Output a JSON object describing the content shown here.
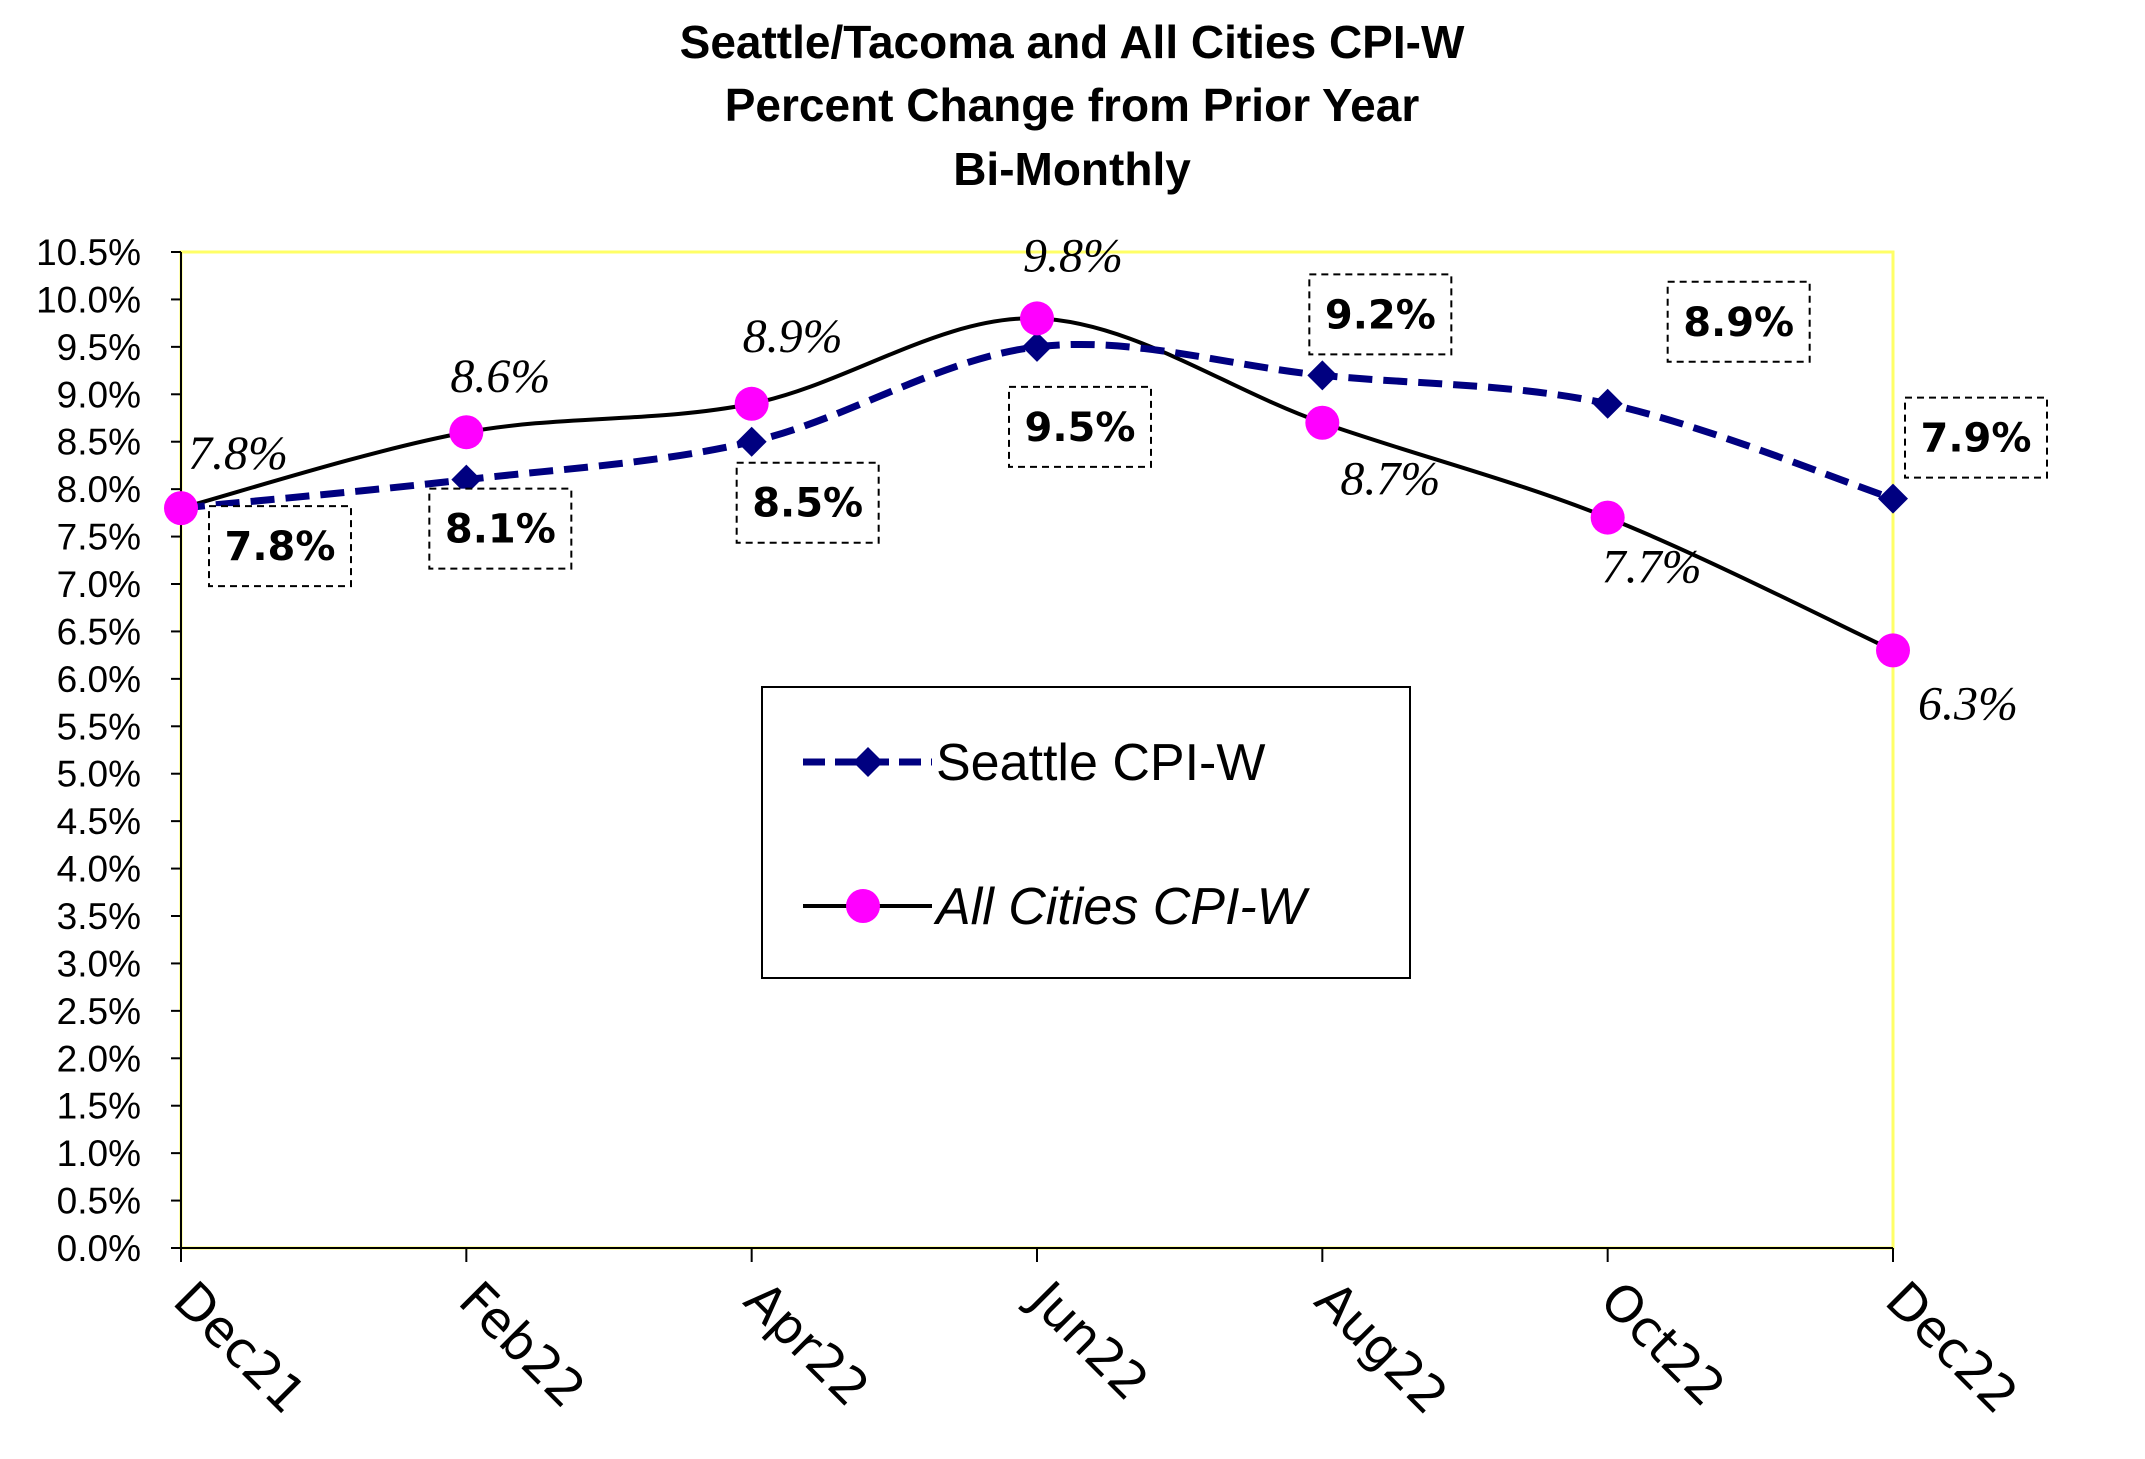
{
  "chart_data": {
    "type": "line",
    "title": [
      "Seattle/Tacoma and All Cities CPI-W",
      "Percent Change from Prior Year",
      "Bi-Monthly"
    ],
    "categories": [
      "Dec21",
      "Feb22",
      "Apr22",
      "Jun22",
      "Aug22",
      "Oct22",
      "Dec22"
    ],
    "ylim": [
      0,
      10.5
    ],
    "ytick_step": 0.5,
    "ytick_labels": [
      "0.0%",
      "0.5%",
      "1.0%",
      "1.5%",
      "2.0%",
      "2.5%",
      "3.0%",
      "3.5%",
      "4.0%",
      "4.5%",
      "5.0%",
      "5.5%",
      "6.0%",
      "6.5%",
      "7.0%",
      "7.5%",
      "8.0%",
      "8.5%",
      "9.0%",
      "9.5%",
      "10.0%",
      "10.5%"
    ],
    "grid": false,
    "legend_position": "center",
    "series": [
      {
        "name": "Seattle CPI-W",
        "values": [
          7.8,
          8.1,
          8.5,
          9.5,
          9.2,
          8.9,
          7.9
        ],
        "labels": [
          "7.8%",
          "8.1%",
          "8.5%",
          "9.5%",
          "9.2%",
          "8.9%",
          "7.9%"
        ],
        "color": "#000080",
        "line_style": "dashed",
        "marker": "diamond"
      },
      {
        "name": "All Cities CPI-W",
        "values": [
          7.8,
          8.6,
          8.9,
          9.8,
          8.7,
          7.7,
          6.3
        ],
        "labels": [
          "7.8%",
          "8.6%",
          "8.9%",
          "9.8%",
          "8.7%",
          "7.7%",
          "6.3%"
        ],
        "color": "#000000",
        "marker_color": "#FF00FF",
        "line_style": "solid",
        "marker": "circle"
      }
    ]
  }
}
